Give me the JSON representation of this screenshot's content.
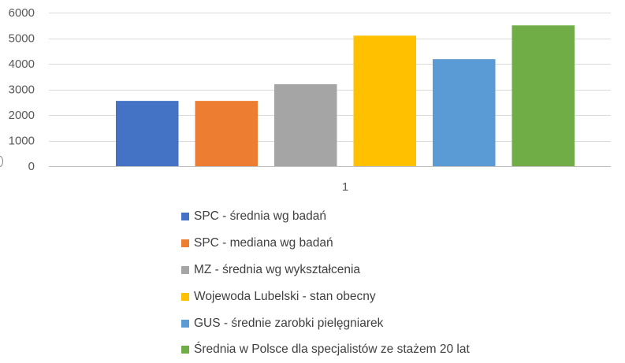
{
  "chart_data": {
    "type": "bar",
    "categories": [
      "1"
    ],
    "ylim": [
      0,
      6000
    ],
    "yticks": [
      0,
      1000,
      2000,
      3000,
      4000,
      5000,
      6000
    ],
    "grid": true,
    "legend_position": "bottom",
    "series": [
      {
        "name": "SPC - średnia wg badań",
        "values": [
          2550
        ],
        "color": "#4472C4"
      },
      {
        "name": "SPC - mediana wg badań",
        "values": [
          2550
        ],
        "color": "#ED7D31"
      },
      {
        "name": "MZ - średnia wg wykształcenia",
        "values": [
          3200
        ],
        "color": "#A5A5A5"
      },
      {
        "name": "Wojewoda Lubelski - stan obecny",
        "values": [
          5100
        ],
        "color": "#FFC000"
      },
      {
        "name": "GUS - średnie zarobki pielęgniarek",
        "values": [
          4180
        ],
        "color": "#5B9BD5"
      },
      {
        "name": "Średnia w Polsce dla specjalistów ze stażem 20 lat",
        "values": [
          5500
        ],
        "color": "#70AD47"
      }
    ]
  }
}
